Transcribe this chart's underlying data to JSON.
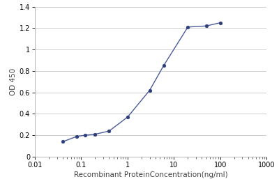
{
  "x_values": [
    0.04,
    0.08,
    0.12,
    0.2,
    0.4,
    1.0,
    3.0,
    6.0,
    20.0,
    50.0,
    100.0
  ],
  "y_values": [
    0.14,
    0.19,
    0.2,
    0.21,
    0.24,
    0.37,
    0.62,
    0.85,
    1.21,
    1.22,
    1.25
  ],
  "xlabel": "Recombinant ProteinConcentration(ng/ml)",
  "ylabel": "OD 450",
  "xlim": [
    0.01,
    1000
  ],
  "ylim": [
    0,
    1.4
  ],
  "yticks": [
    0,
    0.2,
    0.4,
    0.6,
    0.8,
    1.0,
    1.2,
    1.4
  ],
  "xticks": [
    0.01,
    0.1,
    1,
    10,
    100,
    1000
  ],
  "xtick_labels": [
    "0.01",
    "0.1",
    "1",
    "10",
    "100",
    "1000"
  ],
  "line_color": "#4a5b9a",
  "marker_color": "#2d3d7a",
  "marker_size": 3.5,
  "line_width": 1.0,
  "background_color": "#ffffff",
  "grid_color": "#c8c8c8",
  "font_color": "#444444",
  "xlabel_fontsize": 7.5,
  "ylabel_fontsize": 7.5,
  "tick_fontsize": 7
}
